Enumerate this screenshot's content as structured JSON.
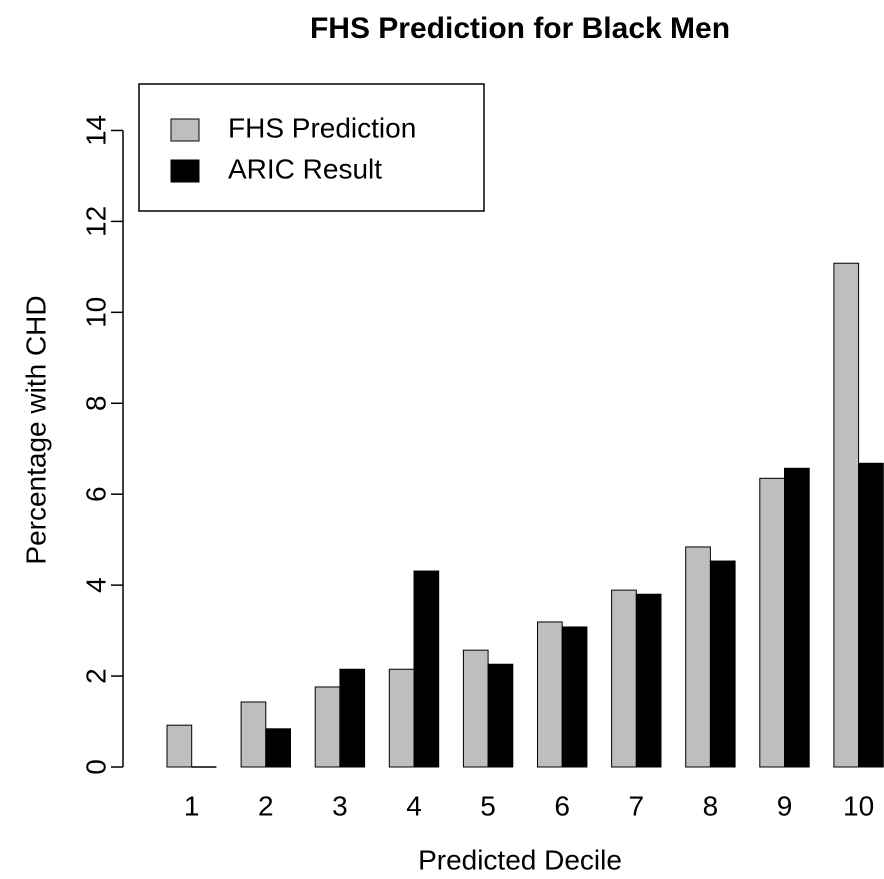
{
  "chart_data": {
    "type": "bar",
    "title": "FHS Prediction for Black Men",
    "x_label": "Predicted Decile",
    "y_label": "Percentage with CHD",
    "categories": [
      "1",
      "2",
      "3",
      "4",
      "5",
      "6",
      "7",
      "8",
      "9",
      "10"
    ],
    "series": [
      {
        "name": "FHS Prediction",
        "color": "#bebebe",
        "values": [
          0.92,
          1.43,
          1.76,
          2.15,
          2.57,
          3.19,
          3.89,
          4.84,
          6.35,
          11.08
        ]
      },
      {
        "name": "ARIC Result",
        "color": "#000000",
        "values": [
          0,
          0.84,
          2.15,
          4.31,
          2.26,
          3.08,
          3.8,
          4.53,
          6.57,
          6.68
        ]
      }
    ],
    "ylim": [
      0,
      15
    ],
    "yticks": [
      0,
      2,
      4,
      6,
      8,
      10,
      12,
      14
    ],
    "legend": "top-left"
  }
}
